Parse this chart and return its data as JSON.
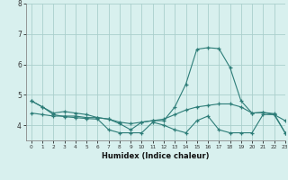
{
  "x": [
    0,
    1,
    2,
    3,
    4,
    5,
    6,
    7,
    8,
    9,
    10,
    11,
    12,
    13,
    14,
    15,
    16,
    17,
    18,
    19,
    20,
    21,
    22,
    23
  ],
  "line_spike": [
    4.8,
    4.6,
    4.4,
    4.45,
    4.4,
    4.35,
    4.25,
    4.2,
    4.05,
    3.85,
    4.1,
    4.15,
    4.15,
    4.6,
    5.35,
    6.5,
    6.55,
    6.52,
    5.9,
    4.8,
    4.4,
    4.42,
    4.35,
    4.15
  ],
  "line_avg": [
    4.4,
    4.35,
    4.3,
    4.3,
    4.3,
    4.25,
    4.25,
    4.2,
    4.1,
    4.05,
    4.1,
    4.15,
    4.2,
    4.35,
    4.5,
    4.6,
    4.65,
    4.7,
    4.7,
    4.6,
    4.4,
    4.42,
    4.38,
    3.75
  ],
  "line_min": [
    4.8,
    4.6,
    4.35,
    4.28,
    4.25,
    4.22,
    4.2,
    3.85,
    3.75,
    3.75,
    3.75,
    4.1,
    4.0,
    3.85,
    3.75,
    4.15,
    4.3,
    3.85,
    3.75,
    3.75,
    3.75,
    4.35,
    4.35,
    3.75
  ],
  "color": "#2d7d78",
  "bg_color": "#d8f0ee",
  "grid_color": "#aacfcc",
  "xlabel": "Humidex (Indice chaleur)",
  "ylim": [
    3.5,
    8.0
  ],
  "xlim": [
    -0.5,
    23
  ],
  "yticks": [
    4,
    5,
    6,
    7,
    8
  ],
  "xticks": [
    0,
    1,
    2,
    3,
    4,
    5,
    6,
    7,
    8,
    9,
    10,
    11,
    12,
    13,
    14,
    15,
    16,
    17,
    18,
    19,
    20,
    21,
    22,
    23
  ]
}
